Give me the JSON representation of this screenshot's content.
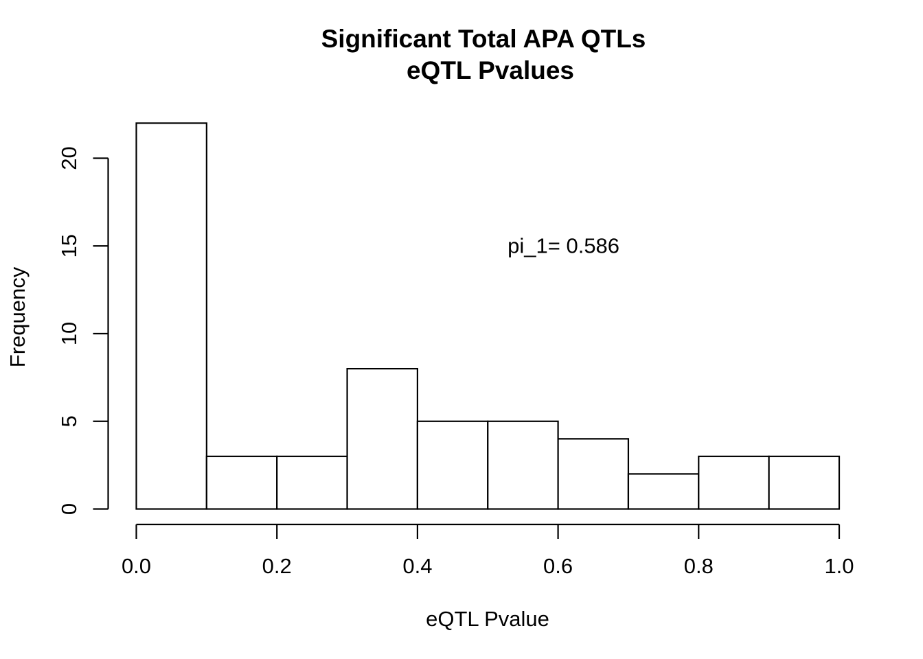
{
  "chart_data": {
    "type": "bar",
    "title": "Significant Total APA QTLs",
    "subtitle": "eQTL Pvalues",
    "xlabel": "eQTL Pvalue",
    "ylabel": "Frequency",
    "bin_edges": [
      0.0,
      0.1,
      0.2,
      0.3,
      0.4,
      0.5,
      0.6,
      0.7,
      0.8,
      0.9,
      1.0
    ],
    "values": [
      22,
      3,
      3,
      8,
      5,
      5,
      4,
      2,
      3,
      3
    ],
    "xlim": [
      0.0,
      1.0
    ],
    "ylim": [
      0,
      22
    ],
    "x_ticks": [
      0.0,
      0.2,
      0.4,
      0.6,
      0.8,
      1.0
    ],
    "x_tick_labels": [
      "0.0",
      "0.2",
      "0.4",
      "0.6",
      "0.8",
      "1.0"
    ],
    "y_ticks": [
      0,
      5,
      10,
      15,
      20
    ],
    "y_tick_labels": [
      "0",
      "5",
      "10",
      "15",
      "20"
    ],
    "annotations": [
      {
        "text": "pi_1= 0.586",
        "x": 0.6,
        "y": 15
      }
    ],
    "grid": false,
    "bar_fill": "#ffffff",
    "bar_stroke": "#000000"
  }
}
